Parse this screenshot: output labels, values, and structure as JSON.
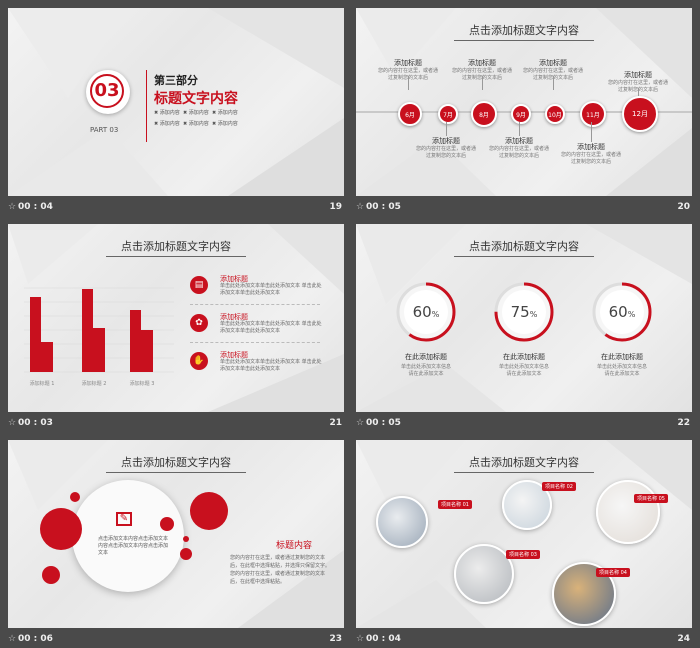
{
  "slides": [
    {
      "number": "19",
      "time": "00 : 04",
      "badge": "03",
      "part": "PART 03",
      "heading": "第三部分",
      "subheading": "标题文字内容",
      "items": [
        "添加内容",
        "添加内容",
        "添加内容",
        "添加内容",
        "添加内容",
        "添加内容"
      ]
    },
    {
      "number": "20",
      "time": "00 : 05",
      "title": "点击添加标题文字内容",
      "months": [
        "6月",
        "7月",
        "8月",
        "9月",
        "10月",
        "11月",
        "12月"
      ],
      "top_labels": [
        "添加标题",
        "添加标题",
        "添加标题",
        "添加标题"
      ],
      "bottom_labels": [
        "添加标题",
        "添加标题",
        "添加标题"
      ],
      "desc": "您的内容打在这里，或者通过复制您的文本后"
    },
    {
      "number": "21",
      "time": "00 : 03",
      "title": "点击添加标题文字内容",
      "chart_data": {
        "type": "bar",
        "categories": [
          "添加标题 1",
          "添加标题 2",
          "添加标题 3"
        ],
        "series": [
          {
            "values": [
              75,
              83,
              62
            ]
          },
          {
            "values": [
              30,
              44,
              42
            ]
          }
        ]
      },
      "items": [
        {
          "title": "添加标题",
          "text": "单击此处添加文本单击此处添加文本 单击此处添加文本单击此处添加文本"
        },
        {
          "title": "添加标题",
          "text": "单击此处添加文本单击此处添加文本 单击此处添加文本单击此处添加文本"
        },
        {
          "title": "添加标题",
          "text": "单击此处添加文本单击此处添加文本 单击此处添加文本单击此处添加文本"
        }
      ]
    },
    {
      "number": "22",
      "time": "00 : 05",
      "title": "点击添加标题文字内容",
      "gauges": [
        {
          "value": "60",
          "pct": "%",
          "label": "在此添加标题",
          "text": "单击此处添加文本信息 请在此添加文本"
        },
        {
          "value": "75",
          "pct": "%",
          "label": "在此添加标题",
          "text": "单击此处添加文本信息 请在此添加文本"
        },
        {
          "value": "60",
          "pct": "%",
          "label": "在此添加标题",
          "text": "单击此处添加文本信息 请在此添加文本"
        }
      ],
      "gauge_fractions": [
        0.6,
        0.75,
        0.6
      ]
    },
    {
      "number": "23",
      "time": "00 : 06",
      "title": "点击添加标题文字内容",
      "heading": "标题内容",
      "para": "您的内容打在这里，或者通过复制您的文本后，在此框中选择粘贴，并选择只保留文字。您的内容打在这里，或者通过复制您的文本后，在此框中选择粘贴。",
      "center_text": "点击添加文本内容点击添加文本内容点击添加文本内容点击添加文本"
    },
    {
      "number": "24",
      "time": "00 : 04",
      "title": "点击添加标题文字内容",
      "tags": [
        "项目名称 01",
        "项目名称 02",
        "项目名称 03",
        "项目名称 04",
        "项目名称 05"
      ]
    }
  ],
  "colors": {
    "accent": "#c8101e",
    "background": "#4a4a4a"
  }
}
